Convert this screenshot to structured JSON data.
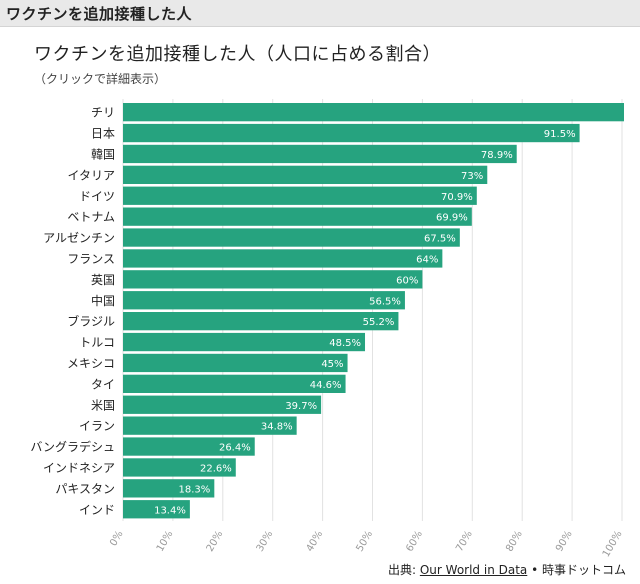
{
  "header": {
    "title": "ワクチンを追加接種した人"
  },
  "chart_data": {
    "type": "bar",
    "orientation": "horizontal",
    "title": "ワクチンを追加接種した人（人口に占める割合）",
    "subtitle": "（クリックで詳細表示）",
    "categories": [
      "チリ",
      "日本",
      "韓国",
      "イタリア",
      "ドイツ",
      "ベトナム",
      "アルゼンチン",
      "フランス",
      "英国",
      "中国",
      "ブラジル",
      "トルコ",
      "メキシコ",
      "タイ",
      "米国",
      "イラン",
      "バングラデシュ",
      "インドネシア",
      "パキスタン",
      "インド"
    ],
    "values": [
      101.4,
      91.5,
      78.9,
      73,
      70.9,
      69.9,
      67.5,
      64,
      60,
      56.5,
      55.2,
      48.5,
      45,
      44.6,
      39.7,
      34.8,
      26.4,
      22.6,
      18.3,
      13.4
    ],
    "value_labels": [
      "",
      "91.5%",
      "78.9%",
      "73%",
      "70.9%",
      "69.9%",
      "67.5%",
      "64%",
      "60%",
      "56.5%",
      "55.2%",
      "48.5%",
      "45%",
      "44.6%",
      "39.7%",
      "34.8%",
      "26.4%",
      "22.6%",
      "18.3%",
      "13.4%"
    ],
    "x_ticks": [
      "0%",
      "10%",
      "20%",
      "30%",
      "40%",
      "50%",
      "60%",
      "70%",
      "80%",
      "90%",
      "100%"
    ],
    "xlim": [
      0,
      100
    ],
    "grid": true,
    "bar_color": "#26a37f"
  },
  "source": {
    "prefix": "出典: ",
    "link": "Our World in Data",
    "suffix": " • 時事ドットコム"
  }
}
